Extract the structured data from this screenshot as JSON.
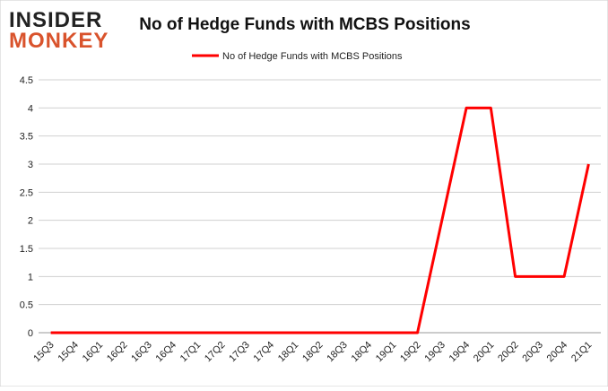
{
  "logo": {
    "line1": "INSIDER",
    "line2": "MONKEY"
  },
  "chart_data": {
    "type": "line",
    "title": "No of Hedge Funds with MCBS Positions",
    "categories": [
      "15Q3",
      "15Q4",
      "16Q1",
      "16Q2",
      "16Q3",
      "16Q4",
      "17Q1",
      "17Q2",
      "17Q3",
      "17Q4",
      "18Q1",
      "18Q2",
      "18Q3",
      "18Q4",
      "19Q1",
      "19Q2",
      "19Q3",
      "19Q4",
      "20Q1",
      "20Q2",
      "20Q3",
      "20Q4",
      "21Q1"
    ],
    "series": [
      {
        "name": "No of Hedge Funds with MCBS Positions",
        "color": "#ff0000",
        "values": [
          0,
          0,
          0,
          0,
          0,
          0,
          0,
          0,
          0,
          0,
          0,
          0,
          0,
          0,
          0,
          0,
          2,
          4,
          4,
          1,
          1,
          1,
          3
        ]
      }
    ],
    "ylim": [
      0,
      4.5
    ],
    "yticks": [
      0,
      0.5,
      1,
      1.5,
      2,
      2.5,
      3,
      3.5,
      4,
      4.5
    ],
    "grid": true,
    "legend": "top"
  }
}
